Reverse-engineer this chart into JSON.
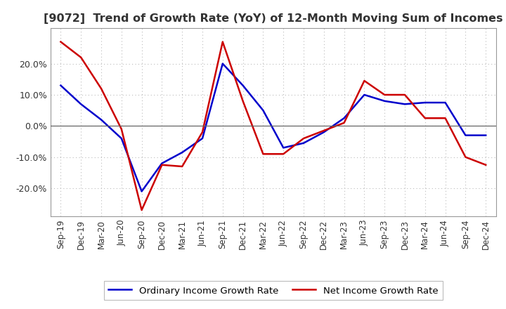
{
  "title": "[9072]  Trend of Growth Rate (YoY) of 12-Month Moving Sum of Incomes",
  "x_labels": [
    "Sep-19",
    "Dec-19",
    "Mar-20",
    "Jun-20",
    "Sep-20",
    "Dec-20",
    "Mar-21",
    "Jun-21",
    "Sep-21",
    "Dec-21",
    "Mar-22",
    "Jun-22",
    "Sep-22",
    "Dec-22",
    "Mar-23",
    "Jun-23",
    "Sep-23",
    "Dec-23",
    "Mar-24",
    "Jun-24",
    "Sep-24",
    "Dec-24"
  ],
  "ordinary_income": [
    0.13,
    0.07,
    0.02,
    -0.04,
    -0.21,
    -0.12,
    -0.085,
    -0.04,
    0.2,
    0.13,
    0.05,
    -0.07,
    -0.055,
    -0.02,
    0.025,
    0.1,
    0.08,
    0.07,
    0.075,
    0.075,
    -0.03,
    -0.03
  ],
  "net_income": [
    0.27,
    0.22,
    0.12,
    -0.01,
    -0.27,
    -0.125,
    -0.13,
    -0.02,
    0.27,
    0.08,
    -0.09,
    -0.09,
    -0.04,
    -0.015,
    0.01,
    0.145,
    0.1,
    0.1,
    0.025,
    0.025,
    -0.1,
    -0.125
  ],
  "ordinary_color": "#0000cc",
  "net_color": "#cc0000",
  "ylim_min": -0.29,
  "ylim_max": 0.315,
  "yticks": [
    -0.2,
    -0.1,
    0.0,
    0.1,
    0.2
  ],
  "ytick_labels": [
    "-20.0%",
    "-10.0%",
    "0.0%",
    "10.0%",
    "20.0%"
  ],
  "legend_ordinary": "Ordinary Income Growth Rate",
  "legend_net": "Net Income Growth Rate",
  "background_color": "#ffffff",
  "grid_color": "#bbbbbb",
  "line_width": 1.8,
  "title_fontsize": 11.5,
  "title_color": "#333333"
}
